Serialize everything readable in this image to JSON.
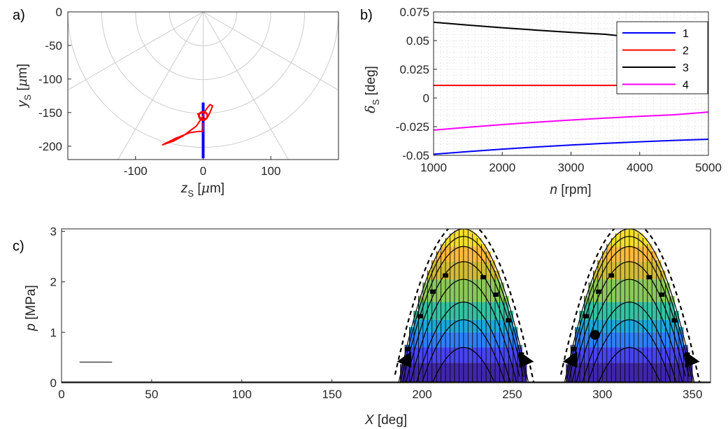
{
  "panels": {
    "a": {
      "label": "a)",
      "xlabel_main": "z",
      "xlabel_sub": "S",
      "xlabel_unit_open": " [",
      "xlabel_mu": "μ",
      "xlabel_unit_close": "m]",
      "ylabel_main": "y",
      "ylabel_sub": "S",
      "ylabel_unit_open": " [",
      "ylabel_mu": "μ",
      "ylabel_unit_close": "m]"
    },
    "b": {
      "label": "b)",
      "xlabel_main": "n",
      "xlabel_unit": " [rpm]",
      "ylabel_main": "δ",
      "ylabel_sub": "S",
      "ylabel_unit": " [deg]"
    },
    "c": {
      "label": "c)",
      "xlabel_main": "X",
      "xlabel_unit": " [deg]",
      "ylabel_main": "p",
      "ylabel_unit": " [MPa]"
    }
  },
  "colors": {
    "blue": "#0000ff",
    "red": "#ff0000",
    "black": "#000000",
    "magenta": "#ff00ff",
    "grid": "#cccccc",
    "parula": [
      "#3e26a8",
      "#4743f0",
      "#2f7ef8",
      "#1ba8d6",
      "#35c0a2",
      "#8bc85c",
      "#d1bb36",
      "#fcb93c",
      "#f5de29"
    ]
  },
  "chart_data": [
    {
      "type": "scatter",
      "panel": "a",
      "title": "",
      "xlim": [
        -200,
        200
      ],
      "ylim": [
        -220,
        0
      ],
      "xticks": [
        -100,
        0,
        100
      ],
      "yticks": [
        0,
        -50,
        -100,
        -150,
        -200
      ],
      "polar_grid_radii": [
        50,
        100,
        150,
        200
      ],
      "polar_grid_angles_deg": [
        0,
        30,
        60,
        90,
        120,
        150,
        180
      ],
      "polar_center": [
        0,
        0
      ],
      "series": [
        {
          "color": "blue",
          "x": [
            0,
            0,
            0,
            0,
            0
          ],
          "y": [
            -135,
            -150,
            -170,
            -200,
            -218
          ]
        },
        {
          "color": "red",
          "x": [
            0,
            -8,
            -4,
            0,
            6,
            10,
            14,
            10,
            4,
            0,
            -10,
            -30,
            -45,
            -60,
            -40,
            -20,
            -6,
            0,
            0
          ],
          "y": [
            -150,
            -152,
            -158,
            -160,
            -158,
            -150,
            -140,
            -138,
            -146,
            -155,
            -170,
            -185,
            -193,
            -198,
            -188,
            -180,
            -178,
            -178,
            -165
          ]
        }
      ],
      "marker": {
        "x": 0,
        "y": -155,
        "color": "red"
      }
    },
    {
      "type": "line",
      "panel": "b",
      "title": "",
      "xlim": [
        1000,
        5000
      ],
      "ylim": [
        -0.05,
        0.075
      ],
      "xticks": [
        1000,
        2000,
        3000,
        4000,
        5000
      ],
      "yticks": [
        0.075,
        0.05,
        0.025,
        0,
        -0.025,
        -0.05
      ],
      "ytick_labels": [
        "0.075",
        "0.05",
        "0.025",
        "0",
        "-0.025",
        "-0.05"
      ],
      "grid": "dotted",
      "legend": "top-right",
      "x": [
        1000,
        1500,
        2000,
        2500,
        3000,
        3500,
        4000,
        4500,
        5000
      ],
      "series": [
        {
          "name": "1",
          "color": "blue",
          "values": [
            -0.049,
            -0.0467,
            -0.0446,
            -0.0427,
            -0.041,
            -0.0395,
            -0.0382,
            -0.037,
            -0.036
          ]
        },
        {
          "name": "2",
          "color": "red",
          "values": [
            0.011,
            0.011,
            0.011,
            0.011,
            0.011,
            0.011,
            0.011,
            0.011,
            0.011
          ]
        },
        {
          "name": "3",
          "color": "black",
          "values": [
            0.066,
            0.0635,
            0.0612,
            0.0591,
            0.0572,
            0.0555,
            0.0522,
            0.0495,
            0.047
          ]
        },
        {
          "name": "4",
          "color": "magenta",
          "values": [
            -0.028,
            -0.0255,
            -0.0232,
            -0.0211,
            -0.0192,
            -0.0175,
            -0.016,
            -0.0146,
            -0.0123
          ]
        }
      ]
    },
    {
      "type": "area",
      "panel": "c",
      "title": "",
      "xlim": [
        0,
        360
      ],
      "ylim": [
        0,
        3.05
      ],
      "xticks": [
        0,
        50,
        100,
        150,
        200,
        250,
        300,
        350
      ],
      "yticks": [
        0,
        1,
        2,
        3
      ],
      "baseline_flat": [
        [
          0,
          0
        ],
        [
          360,
          0
        ]
      ],
      "small_segment": {
        "x": [
          10,
          28
        ],
        "y": 0.41
      },
      "lobes": [
        {
          "center": 223,
          "x_start": 188,
          "x_end": 260,
          "peak": 3.05
        },
        {
          "center": 315,
          "x_start": 280,
          "x_end": 352,
          "peak": 3.05
        }
      ],
      "contour_levels": [
        0.0,
        0.4,
        0.7,
        1.0,
        1.25,
        1.6,
        2.05,
        2.4,
        2.7,
        2.9,
        3.05
      ],
      "curve_peaks": [
        0.7,
        1.25,
        1.6,
        2.05,
        2.4,
        2.7,
        2.9,
        3.05
      ],
      "marker": {
        "x": 296,
        "y": 0.95
      }
    }
  ]
}
